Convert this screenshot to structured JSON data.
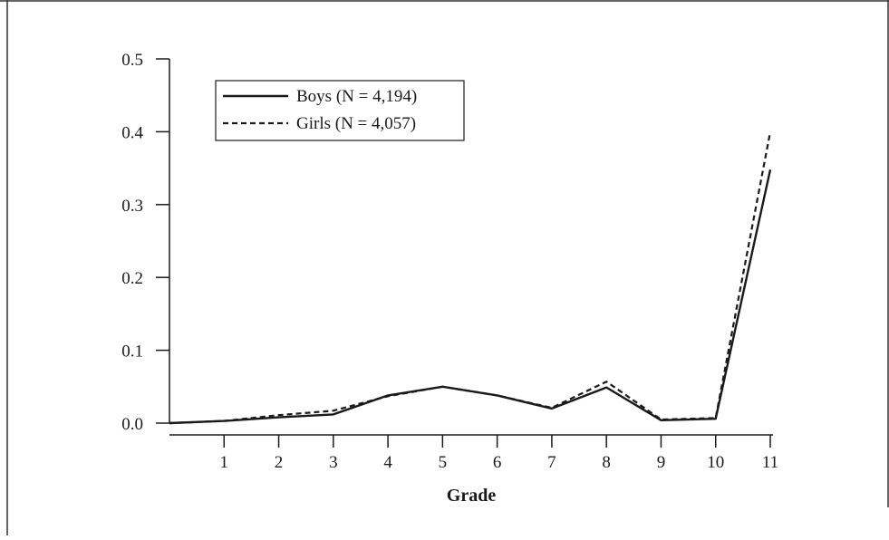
{
  "chart_data": {
    "type": "line",
    "title": "",
    "xlabel": "Grade",
    "ylabel": "",
    "x": [
      0,
      1,
      2,
      3,
      4,
      5,
      6,
      7,
      8,
      9,
      10,
      11
    ],
    "x_tick_labels": [
      "1",
      "2",
      "3",
      "4",
      "5",
      "6",
      "7",
      "8",
      "9",
      "10",
      "11"
    ],
    "y_tick_labels": [
      "0.0",
      "0.1",
      "0.2",
      "0.3",
      "0.4",
      "0.5"
    ],
    "xlim": [
      0,
      11
    ],
    "ylim": [
      0,
      0.5
    ],
    "grid": false,
    "legend_position": "top-left",
    "series": [
      {
        "name": "Boys (N = 4,194)",
        "style": "solid",
        "color": "#1a1a1a",
        "values": [
          0.0,
          0.003,
          0.008,
          0.012,
          0.038,
          0.05,
          0.038,
          0.02,
          0.049,
          0.004,
          0.006,
          0.348
        ]
      },
      {
        "name": "Girls (N = 4,057)",
        "style": "dashed",
        "color": "#1a1a1a",
        "values": [
          0.0,
          0.003,
          0.011,
          0.017,
          0.037,
          0.05,
          0.038,
          0.021,
          0.057,
          0.005,
          0.007,
          0.4
        ]
      }
    ]
  }
}
